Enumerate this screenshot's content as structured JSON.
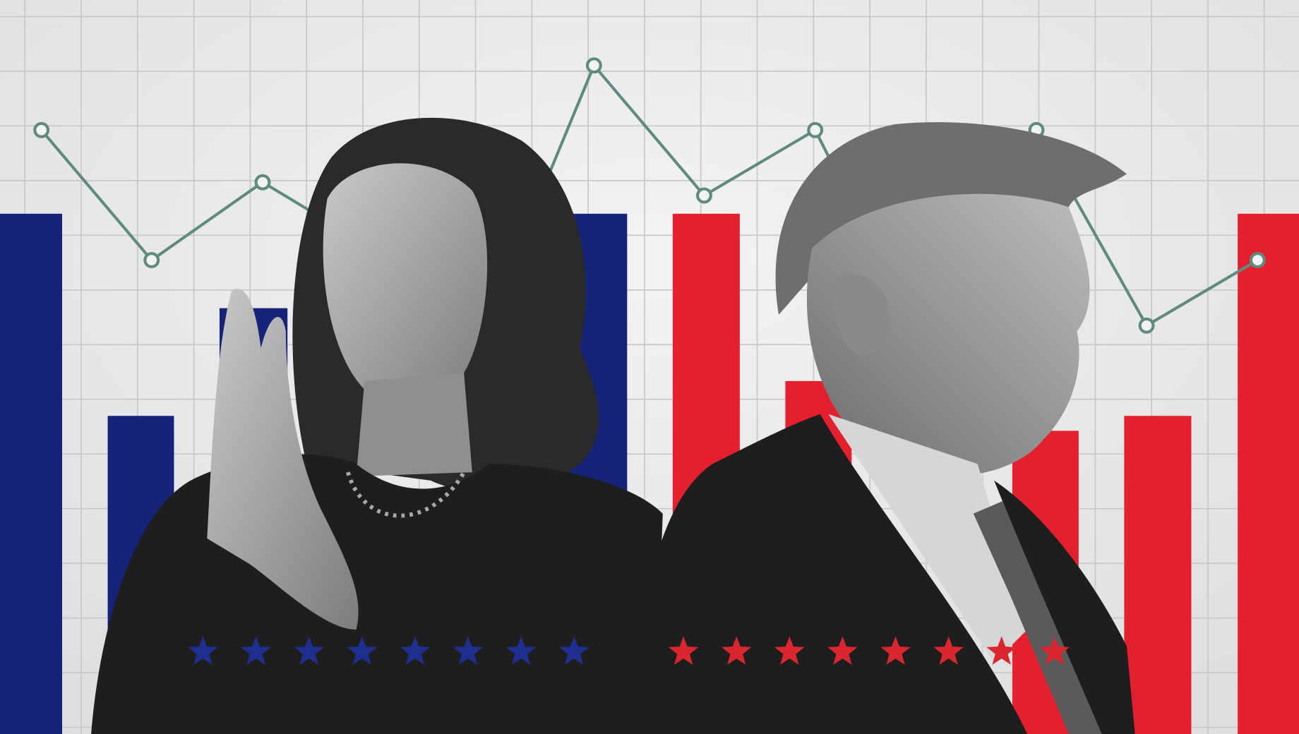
{
  "colors": {
    "background": "#ebebeb",
    "grid": "#c9c9c9",
    "blue_bar": "#16237a",
    "red_bar": "#e5202e",
    "trend_line": "#5f8a80",
    "blue_star": "#1f2f8f",
    "red_star": "#d9262f",
    "figure_dark": "#1e1e1e"
  },
  "icons": {
    "blue_stars": "star-icon",
    "red_stars": "star-icon"
  }
}
